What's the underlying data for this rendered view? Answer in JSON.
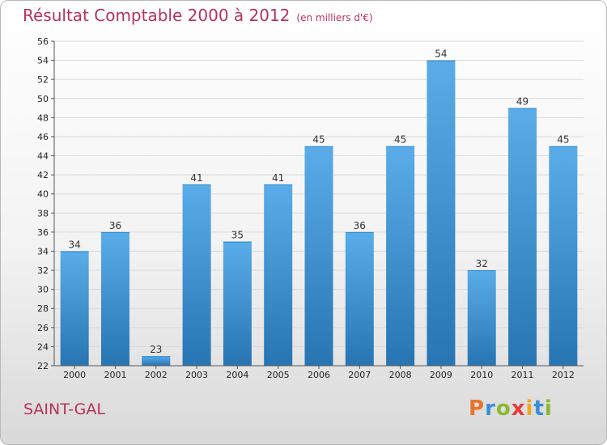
{
  "title": "Résultat Comptable 2000 à 2012",
  "subtitle": "(en milliers d'€)",
  "location": "SAINT-GAL",
  "logo": {
    "letters": [
      "P",
      "r",
      "o",
      "x",
      "i",
      "t",
      "i"
    ],
    "colors": [
      "#e8742a",
      "#3a8fd6",
      "#8ab833",
      "#e23c3c",
      "#f2a81d",
      "#3a8fd6",
      "#8ab833"
    ]
  },
  "chart_data": {
    "type": "bar",
    "categories": [
      "2000",
      "2001",
      "2002",
      "2003",
      "2004",
      "2005",
      "2006",
      "2007",
      "2008",
      "2009",
      "2010",
      "2011",
      "2012"
    ],
    "values": [
      34,
      36,
      23,
      41,
      35,
      41,
      45,
      36,
      45,
      54,
      32,
      49,
      45
    ],
    "ylim": [
      22,
      56
    ],
    "yticks": [
      22,
      24,
      26,
      28,
      30,
      32,
      34,
      36,
      38,
      40,
      42,
      44,
      46,
      48,
      50,
      52,
      54,
      56
    ],
    "grid": true,
    "bar_color_top": "#5aade8",
    "bar_color_bottom": "#2775b3"
  }
}
